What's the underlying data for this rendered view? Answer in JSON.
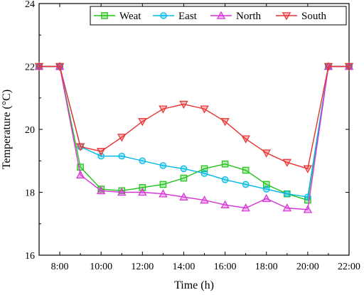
{
  "chart_data": {
    "type": "line",
    "title": "",
    "xlabel": "Time (h)",
    "ylabel": "Temperature (°C)",
    "xlim": [
      7,
      22
    ],
    "ylim": [
      16,
      24
    ],
    "x_ticks": [
      8,
      10,
      12,
      14,
      16,
      18,
      20,
      22
    ],
    "x_tick_labels": [
      "8:00",
      "10:00",
      "12:00",
      "14:00",
      "16:00",
      "18:00",
      "20:00",
      "22:00"
    ],
    "y_ticks": [
      16,
      18,
      20,
      22,
      24
    ],
    "y_tick_labels": [
      "16",
      "18",
      "20",
      "22",
      "24"
    ],
    "grid": false,
    "legend_position": "top-right",
    "x": [
      7,
      8,
      9,
      10,
      11,
      12,
      13,
      14,
      15,
      16,
      17,
      18,
      19,
      20,
      21,
      22
    ],
    "series": [
      {
        "name": "Weat",
        "color": "#22c21a",
        "marker": "square",
        "values": [
          22.0,
          22.0,
          18.8,
          18.1,
          18.05,
          18.15,
          18.25,
          18.45,
          18.75,
          18.9,
          18.7,
          18.25,
          17.95,
          17.75,
          22.0,
          22.0
        ]
      },
      {
        "name": "East",
        "color": "#00b8e6",
        "marker": "circle",
        "values": [
          22.0,
          22.0,
          19.45,
          19.15,
          19.15,
          19.0,
          18.85,
          18.75,
          18.6,
          18.4,
          18.25,
          18.1,
          17.95,
          17.85,
          22.0,
          22.0
        ]
      },
      {
        "name": "North",
        "color": "#d633d6",
        "marker": "triangle-up",
        "values": [
          22.0,
          22.0,
          18.55,
          18.05,
          18.0,
          18.0,
          17.95,
          17.85,
          17.75,
          17.6,
          17.5,
          17.8,
          17.5,
          17.45,
          22.0,
          22.0
        ]
      },
      {
        "name": "South",
        "color": "#e83232",
        "marker": "triangle-down",
        "values": [
          22.0,
          22.0,
          19.45,
          19.3,
          19.75,
          20.25,
          20.65,
          20.8,
          20.65,
          20.25,
          19.7,
          19.25,
          18.95,
          18.75,
          22.0,
          22.0
        ]
      }
    ]
  }
}
